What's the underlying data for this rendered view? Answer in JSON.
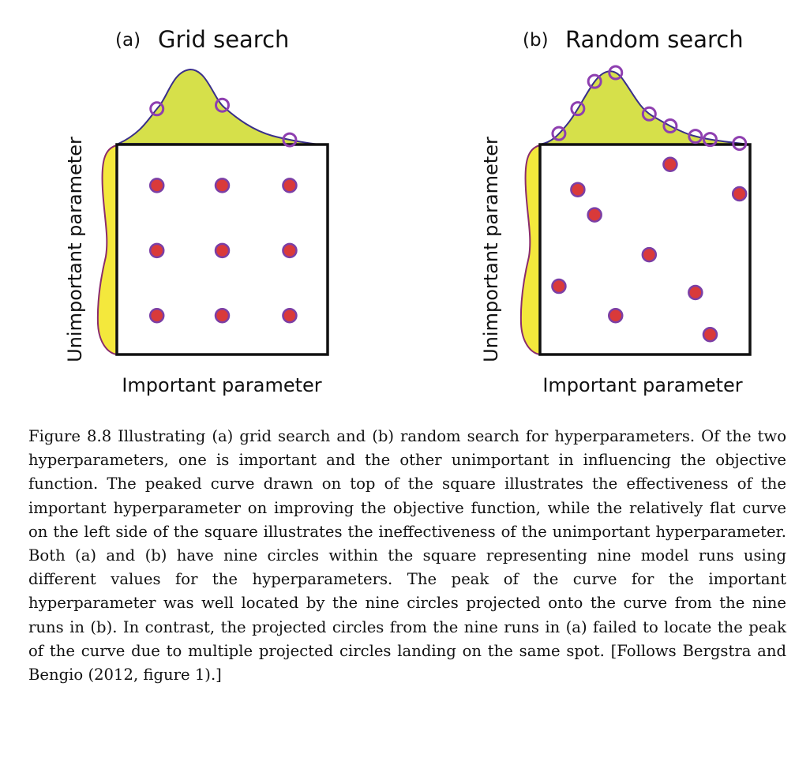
{
  "figure": {
    "panels": [
      {
        "label": "(a)",
        "title": "Grid search",
        "xlabel": "Important parameter",
        "ylabel": "Unimportant parameter",
        "points": [
          {
            "x": 0.19,
            "y": 0.805
          },
          {
            "x": 0.5,
            "y": 0.805
          },
          {
            "x": 0.82,
            "y": 0.805
          },
          {
            "x": 0.19,
            "y": 0.495
          },
          {
            "x": 0.5,
            "y": 0.495
          },
          {
            "x": 0.82,
            "y": 0.495
          },
          {
            "x": 0.19,
            "y": 0.185
          },
          {
            "x": 0.5,
            "y": 0.185
          },
          {
            "x": 0.82,
            "y": 0.185
          }
        ],
        "projected_x": [
          0.19,
          0.5,
          0.82
        ]
      },
      {
        "label": "(b)",
        "title": "Random search",
        "xlabel": "Important parameter",
        "ylabel": "Unimportant parameter",
        "points": [
          {
            "x": 0.62,
            "y": 0.905
          },
          {
            "x": 0.18,
            "y": 0.785
          },
          {
            "x": 0.95,
            "y": 0.765
          },
          {
            "x": 0.26,
            "y": 0.665
          },
          {
            "x": 0.52,
            "y": 0.475
          },
          {
            "x": 0.09,
            "y": 0.325
          },
          {
            "x": 0.74,
            "y": 0.295
          },
          {
            "x": 0.36,
            "y": 0.185
          },
          {
            "x": 0.81,
            "y": 0.095
          }
        ],
        "projected_x": [
          0.09,
          0.18,
          0.26,
          0.36,
          0.52,
          0.62,
          0.74,
          0.81,
          0.95
        ]
      }
    ],
    "colors": {
      "frame": "#111111",
      "point_fill": "#d93a3a",
      "point_stroke": "#7b3fa6",
      "peak_fill": "#d6e04a",
      "peak_stroke": "#3a2f8a",
      "flat_fill": "#f4e83c",
      "flat_stroke": "#8a2b6e",
      "projection_stroke": "#8e3fb0"
    }
  },
  "caption": "Figure 8.8 Illustrating (a) grid search and (b) random search for hyperparameters. Of the two hyperparameters, one is important and the other unimportant in influencing the objective function. The peaked curve drawn on top of the square illustrates the effectiveness of the important hyperparameter on improving the objective function, while the relatively flat curve on the left side of the square illustrates the ineffectiveness of the unimportant hyperparameter. Both (a) and (b) have nine circles within the square representing nine model runs using different values for the hyperparameters. The peak of the curve for the important hyperparameter was well located by the nine circles projected onto the curve from the nine runs in (b). In contrast, the projected circles from the nine runs in (a) failed to locate the peak of the curve due to multiple projected circles landing on the same spot. [Follows Bergstra and Bengio (2012, figure 1).]"
}
